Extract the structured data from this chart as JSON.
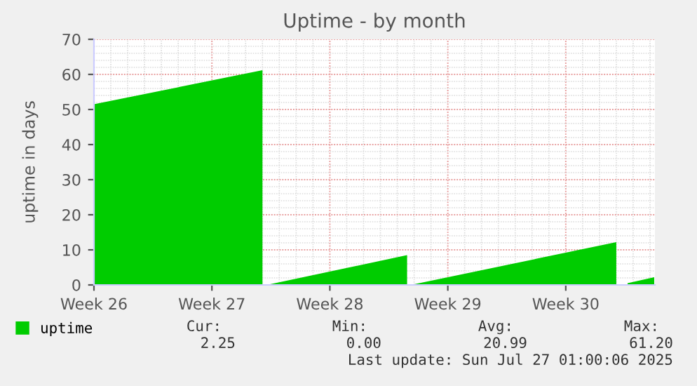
{
  "chart_data": {
    "type": "area",
    "title": "Uptime - by month",
    "ylabel": "uptime in days",
    "x": [
      "2025-06-23T00:00",
      "2025-07-03T00:00",
      "2025-07-03T02:00",
      "2025-07-03T06:00",
      "2025-07-11T14:00",
      "2025-07-11T19:00",
      "2025-07-12T00:00",
      "2025-07-24T00:00",
      "2025-07-24T05:00",
      "2025-07-24T16:00",
      "2025-07-26T06:00"
    ],
    "series": [
      {
        "name": "uptime",
        "color": "#00cc00",
        "values": [
          51.5,
          61.2,
          null,
          0,
          8.5,
          null,
          0.2,
          12.2,
          null,
          0.5,
          2.2
        ]
      }
    ],
    "xlim": [
      "2025-06-23T00:00",
      "2025-07-26T07:00"
    ],
    "xticks": [
      {
        "value": "2025-06-23T00:00",
        "label": "Week 26"
      },
      {
        "value": "2025-06-30T00:00",
        "label": "Week 27"
      },
      {
        "value": "2025-07-07T00:00",
        "label": "Week 28"
      },
      {
        "value": "2025-07-14T00:00",
        "label": "Week 29"
      },
      {
        "value": "2025-07-21T00:00",
        "label": "Week 30"
      }
    ],
    "ylim": [
      0,
      70
    ],
    "yticks": [
      0,
      10,
      20,
      30,
      40,
      50,
      60,
      70
    ],
    "grid": true,
    "legend": "bottom",
    "annotations": [
      "Cur:",
      "Min:",
      "Avg:",
      "Max:",
      "2.25",
      "0.00",
      "20.99",
      "61.20",
      "Last update: Sun Jul 27 01:00:06 2025"
    ]
  }
}
